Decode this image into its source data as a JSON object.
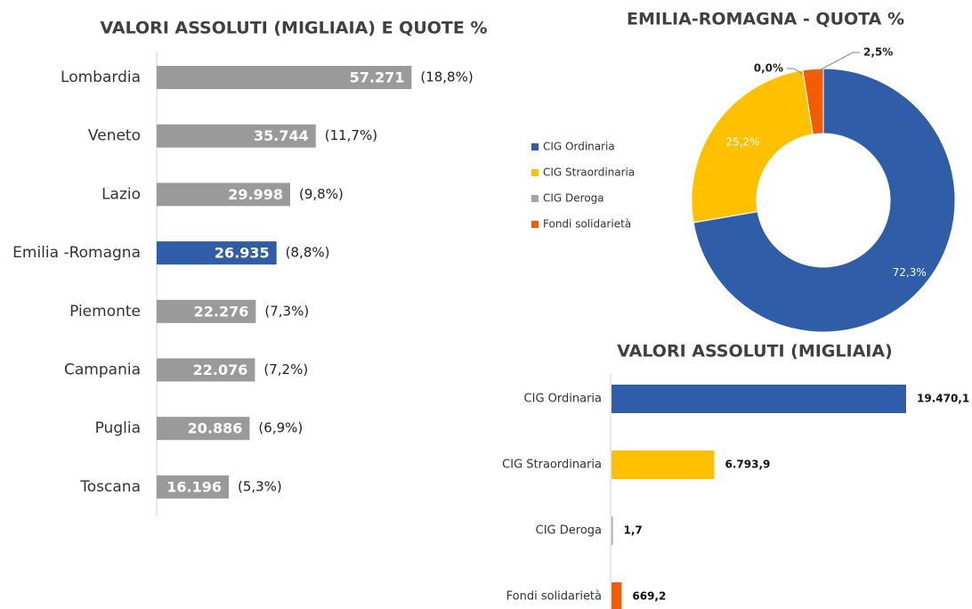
{
  "chart_data": [
    {
      "type": "bar",
      "title": "VALORI ASSOLUTI (MIGLIAIA)  E QUOTE %",
      "categories": [
        "Lombardia",
        "Veneto",
        "Lazio",
        "Emilia -Romagna",
        "Piemonte",
        "Campania",
        "Puglia",
        "Toscana"
      ],
      "values": [
        57271,
        35744,
        29998,
        26935,
        22276,
        22076,
        20886,
        16196
      ],
      "value_labels": [
        "57.271",
        "35.744",
        "29.998",
        "26.935",
        "22.276",
        "22.076",
        "20.886",
        "16.196"
      ],
      "shares": [
        18.8,
        11.7,
        9.8,
        8.8,
        7.3,
        7.2,
        6.9,
        5.3
      ],
      "share_labels": [
        "(18,8%)",
        "(11,7%)",
        "(9,8%)",
        "(8,8%)",
        "(7,3%)",
        "(7,2%)",
        "(6,9%)",
        "(5,3%)"
      ],
      "colors": [
        "#9a9a9a",
        "#9a9a9a",
        "#9a9a9a",
        "#2f5da8",
        "#9a9a9a",
        "#9a9a9a",
        "#9a9a9a",
        "#9a9a9a"
      ],
      "xlim": [
        0,
        60000
      ]
    },
    {
      "type": "pie",
      "title": "EMILIA-ROMAGNA - QUOTA %",
      "categories": [
        "CIG Ordinaria",
        "CIG Straordinaria",
        "CIG Deroga",
        "Fondi solidarietà"
      ],
      "values": [
        72.3,
        25.2,
        0.0,
        2.5
      ],
      "value_labels": [
        "72,3%",
        "25,2%",
        "0,0%",
        "2,5%"
      ],
      "colors": [
        "#2f5da8",
        "#ffc000",
        "#a5a5a5",
        "#f25c05"
      ],
      "legend": "left"
    },
    {
      "type": "bar",
      "title": "VALORI ASSOLUTI (MIGLIAIA)",
      "categories": [
        "CIG Ordinaria",
        "CIG Straordinaria",
        "CIG Deroga",
        "Fondi solidarietà"
      ],
      "values": [
        19470.1,
        6793.9,
        1.7,
        669.2
      ],
      "value_labels": [
        "19.470,1",
        "6.793,9",
        "1,7",
        "669,2"
      ],
      "colors": [
        "#2f5da8",
        "#ffc000",
        "#a5a5a5",
        "#f25c05"
      ],
      "xlim": [
        0,
        20000
      ]
    }
  ]
}
